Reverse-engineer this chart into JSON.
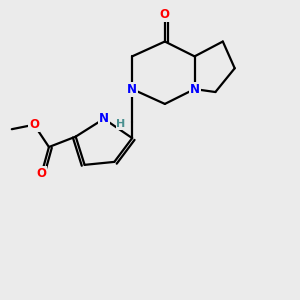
{
  "background_color": "#ebebeb",
  "bond_color": "#000000",
  "atom_colors": {
    "N": "#0000ff",
    "O": "#ff0000",
    "H": "#4a9090",
    "C": "#000000"
  },
  "figsize": [
    3.0,
    3.0
  ],
  "dpi": 100
}
